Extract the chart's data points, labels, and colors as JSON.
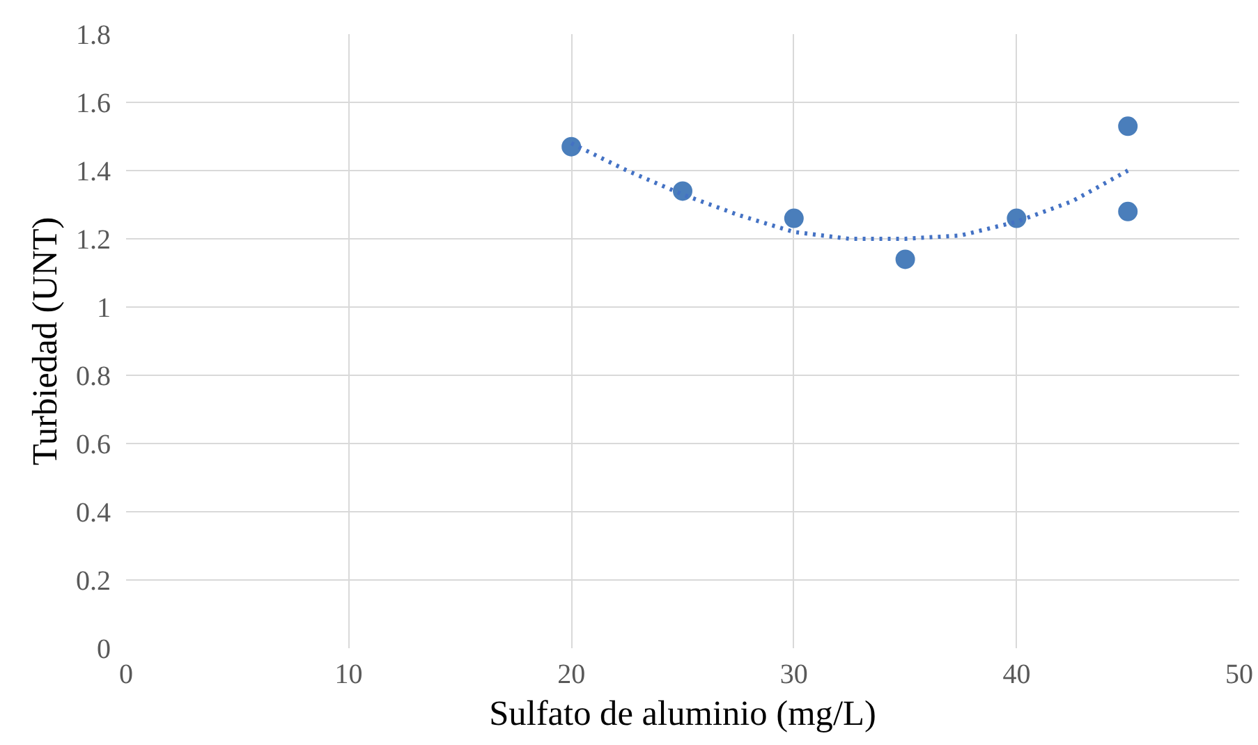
{
  "chart_data": {
    "type": "scatter",
    "xlabel": "Sulfato de aluminio (mg/L)",
    "ylabel": "Turbiedad (UNT)",
    "xlim": [
      0,
      50
    ],
    "xticks": [
      0,
      10,
      20,
      30,
      40,
      50
    ],
    "ylim": [
      0,
      1.8
    ],
    "yticks": [
      0,
      0.2,
      0.4,
      0.6,
      0.8,
      1,
      1.2,
      1.4,
      1.6,
      1.8
    ],
    "grid": true,
    "marker": "circle",
    "series": [
      {
        "color": "#4a7ebb",
        "x": [
          20,
          25,
          30,
          35,
          40,
          45,
          45
        ],
        "values": [
          1.47,
          1.34,
          1.26,
          1.14,
          1.26,
          1.53,
          1.28
        ]
      },
      {
        "type": "line",
        "color": "#4472c4",
        "line_style": "dotted",
        "marker": "none",
        "x": [
          20,
          22.5,
          25,
          27.5,
          30,
          32.5,
          35,
          37.5,
          40,
          42.5,
          45
        ],
        "values": [
          1.48,
          1.4,
          1.33,
          1.27,
          1.22,
          1.2,
          1.2,
          1.21,
          1.25,
          1.31,
          1.4
        ]
      }
    ]
  }
}
